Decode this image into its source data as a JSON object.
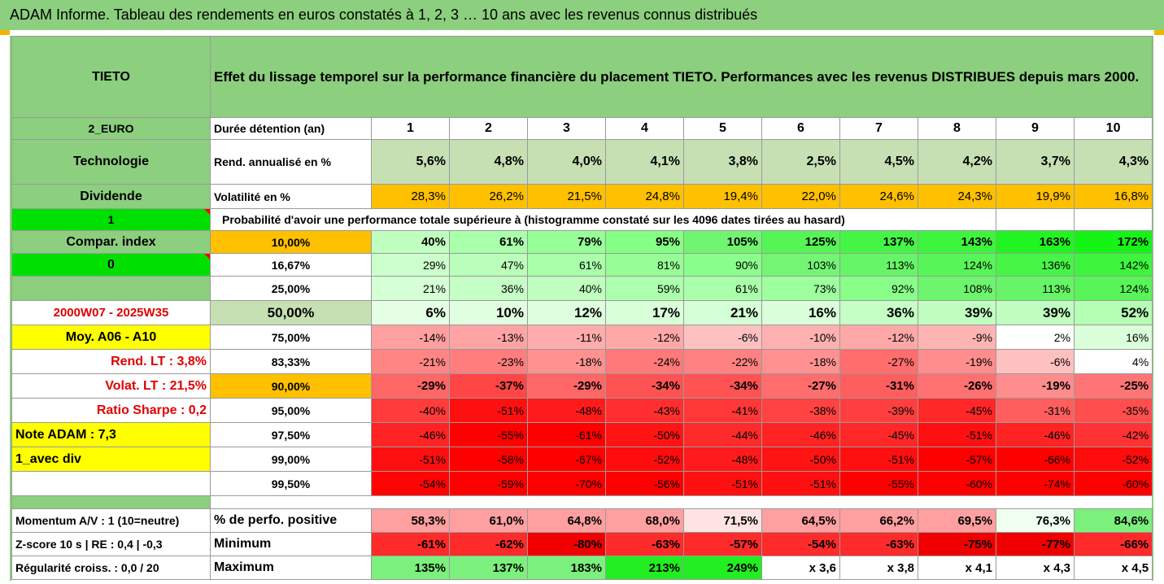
{
  "title": "ADAM Informe. Tableau des rendements en euros constatés à 1, 2, 3 … 10 ans avec les revenus connus distribués",
  "side": {
    "name": "TIETO",
    "currency": "2_EURO",
    "sector": "Technologie",
    "dividend_label": "Dividende",
    "dividend_value": "1",
    "compar_label": "Compar. index",
    "compar_value": "0",
    "period": "2000W07 - 2025W35",
    "moy": "Moy. A06 - A10",
    "rend_lt": "Rend. LT :   3,8%",
    "volat_lt": "Volat. LT :   21,5%",
    "sharpe": "Ratio Sharpe :   0,2",
    "note": "Note ADAM : 7,3",
    "avec_div": "1_avec div",
    "momentum": "Momentum A/V : 1 (10=neutre)",
    "zscore": "Z-score 10 s  |  RE : 0,4  |  -0,3",
    "regularite": "Régularité croiss. : 0,0 / 20"
  },
  "description": "Effet du lissage temporel sur la performance financière du placement TIETO. Performances avec les revenus DISTRIBUES depuis mars 2000.",
  "duree_label": "Durée détention (an)",
  "years": [
    "1",
    "2",
    "3",
    "4",
    "5",
    "6",
    "7",
    "8",
    "9",
    "10"
  ],
  "rend_label": "Rend. annualisé en %",
  "rend": [
    "5,6%",
    "4,8%",
    "4,0%",
    "4,1%",
    "3,8%",
    "2,5%",
    "4,5%",
    "4,2%",
    "3,7%",
    "4,3%"
  ],
  "vol_label": "Volatilité en %",
  "vol": [
    "28,3%",
    "26,2%",
    "21,5%",
    "24,8%",
    "19,4%",
    "22,0%",
    "24,6%",
    "24,3%",
    "19,9%",
    "16,8%"
  ],
  "proba_label": "Probabilité d'avoir une performance totale supérieure à (histogramme constaté sur les 4096 dates tirées au hasard)",
  "pct_rows": [
    {
      "p": "10,00%",
      "v": [
        "40%",
        "61%",
        "79%",
        "95%",
        "105%",
        "125%",
        "137%",
        "143%",
        "163%",
        "172%"
      ]
    },
    {
      "p": "16,67%",
      "v": [
        "29%",
        "47%",
        "61%",
        "81%",
        "90%",
        "103%",
        "113%",
        "124%",
        "136%",
        "142%"
      ]
    },
    {
      "p": "25,00%",
      "v": [
        "21%",
        "36%",
        "40%",
        "59%",
        "61%",
        "73%",
        "92%",
        "108%",
        "113%",
        "124%"
      ]
    },
    {
      "p": "50,00%",
      "v": [
        "6%",
        "10%",
        "12%",
        "17%",
        "21%",
        "16%",
        "36%",
        "39%",
        "39%",
        "52%"
      ]
    },
    {
      "p": "75,00%",
      "v": [
        "-14%",
        "-13%",
        "-11%",
        "-12%",
        "-6%",
        "-10%",
        "-12%",
        "-9%",
        "2%",
        "16%"
      ]
    },
    {
      "p": "83,33%",
      "v": [
        "-21%",
        "-23%",
        "-18%",
        "-24%",
        "-22%",
        "-18%",
        "-27%",
        "-19%",
        "-6%",
        "4%"
      ]
    },
    {
      "p": "90,00%",
      "v": [
        "-29%",
        "-37%",
        "-29%",
        "-34%",
        "-34%",
        "-27%",
        "-31%",
        "-26%",
        "-19%",
        "-25%"
      ]
    },
    {
      "p": "95,00%",
      "v": [
        "-40%",
        "-51%",
        "-48%",
        "-43%",
        "-41%",
        "-38%",
        "-39%",
        "-45%",
        "-31%",
        "-35%"
      ]
    },
    {
      "p": "97,50%",
      "v": [
        "-46%",
        "-55%",
        "-61%",
        "-50%",
        "-44%",
        "-46%",
        "-45%",
        "-51%",
        "-46%",
        "-42%"
      ]
    },
    {
      "p": "99,00%",
      "v": [
        "-51%",
        "-58%",
        "-67%",
        "-52%",
        "-48%",
        "-50%",
        "-51%",
        "-57%",
        "-66%",
        "-52%"
      ]
    },
    {
      "p": "99,50%",
      "v": [
        "-54%",
        "-59%",
        "-70%",
        "-56%",
        "-51%",
        "-51%",
        "-55%",
        "-60%",
        "-74%",
        "-60%"
      ]
    }
  ],
  "pos_label": "% de perfo. positive",
  "pos": [
    "58,3%",
    "61,0%",
    "64,8%",
    "68,0%",
    "71,5%",
    "64,5%",
    "66,2%",
    "69,5%",
    "76,3%",
    "84,6%"
  ],
  "min_label": "Minimum",
  "min": [
    "-61%",
    "-62%",
    "-80%",
    "-63%",
    "-57%",
    "-54%",
    "-63%",
    "-75%",
    "-77%",
    "-66%"
  ],
  "max_label": "Maximum",
  "max": [
    "135%",
    "137%",
    "183%",
    "213%",
    "249%",
    "x 3,6",
    "x 3,8",
    "x 4,1",
    "x 4,3",
    "x 4,5"
  ],
  "colors": {
    "title_green": "#8ccf7e",
    "bright_green": "#00e000",
    "yellow": "#ffff00",
    "orange": "#ffc000",
    "red_text": "#e00000"
  }
}
